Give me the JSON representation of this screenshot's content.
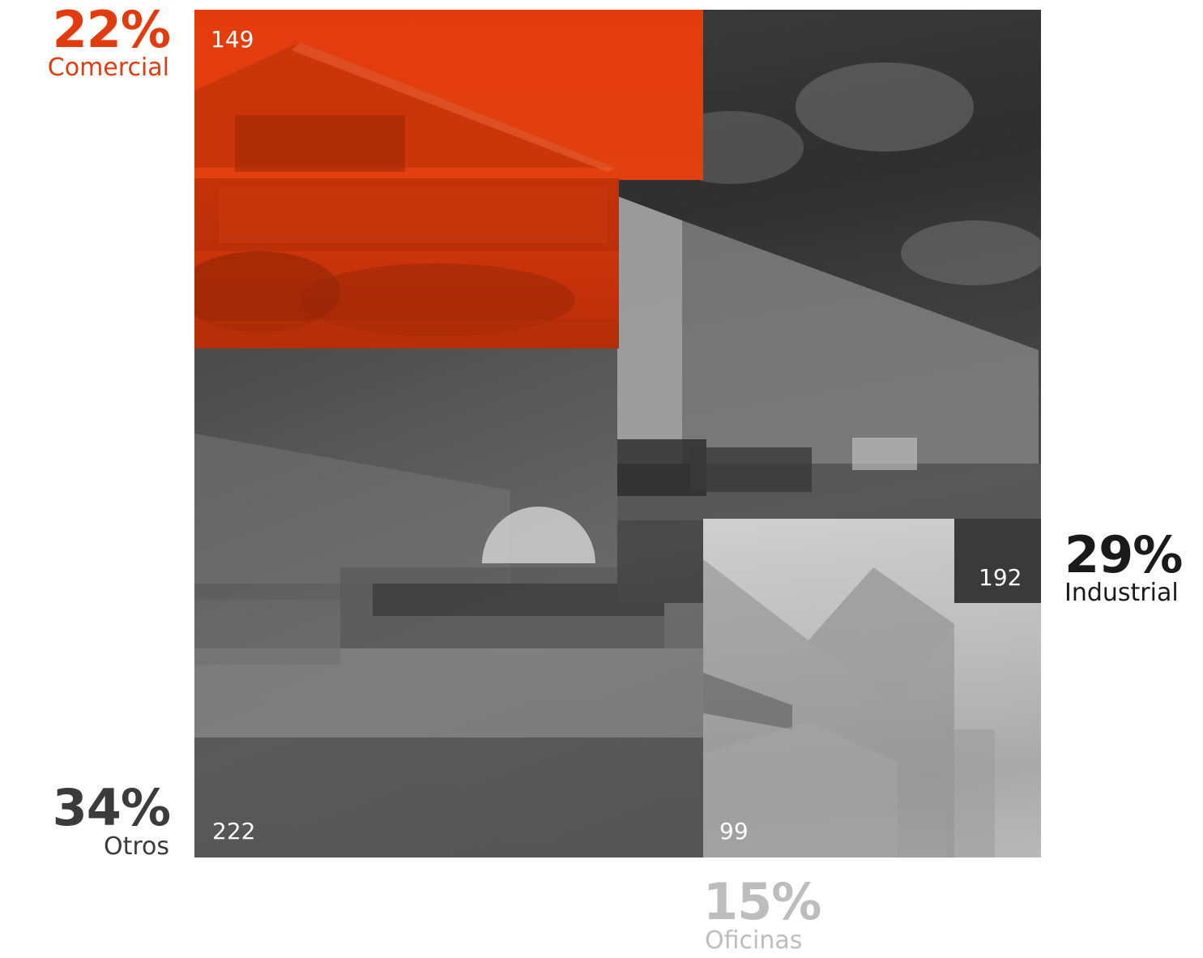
{
  "colors": {
    "accent": "#e23b0e",
    "dark": "#1a1a1a",
    "mid": "#3b3b3b",
    "light": "#bdbdbd"
  },
  "chart_data": {
    "type": "treemap",
    "categories": [
      "Comercial",
      "Industrial",
      "Otros",
      "Oficinas"
    ],
    "values": [
      149,
      192,
      222,
      99
    ],
    "percents": [
      "22%",
      "29%",
      "34%",
      "15%"
    ],
    "series": [
      {
        "name": "Comercial",
        "value": 149,
        "percent": "22%",
        "color": "#e23b0e"
      },
      {
        "name": "Industrial",
        "value": 192,
        "percent": "29%",
        "color": "#1a1a1a"
      },
      {
        "name": "Otros",
        "value": 222,
        "percent": "34%",
        "color": "#3b3b3b"
      },
      {
        "name": "Oficinas",
        "value": 99,
        "percent": "15%",
        "color": "#bdbdbd"
      }
    ],
    "title": ""
  },
  "labels": {
    "comercial": {
      "pct": "22%",
      "name": "Comercial",
      "count": "149"
    },
    "industrial": {
      "pct": "29%",
      "name": "Industrial",
      "count": "192"
    },
    "otros": {
      "pct": "34%",
      "name": "Otros",
      "count": "222"
    },
    "oficinas": {
      "pct": "15%",
      "name": "Oficinas",
      "count": "99"
    }
  }
}
